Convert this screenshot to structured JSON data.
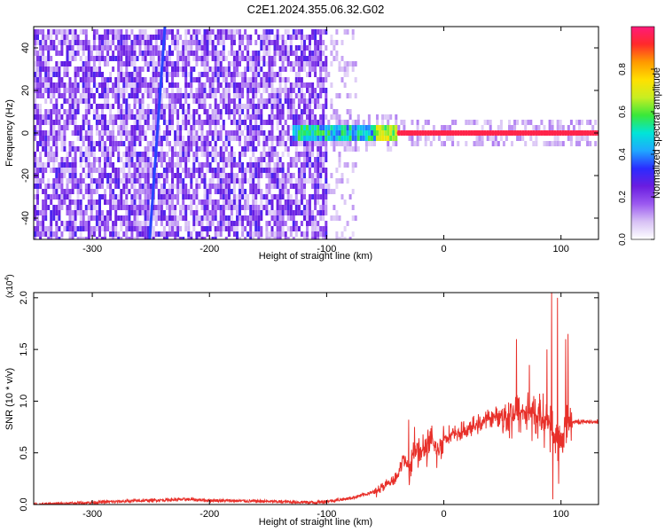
{
  "figure": {
    "title": "C2E1.2024.355.06.32.G02"
  },
  "colors": {
    "snr_line": "#e8302a",
    "background": "#ffffff",
    "colormap": [
      "#ffffff",
      "#d8c2f5",
      "#9b59f0",
      "#6a1de0",
      "#2b2bff",
      "#1fa8ff",
      "#00e5d8",
      "#39e83a",
      "#c8ee22",
      "#ffe000",
      "#ff9a00",
      "#ff2a2a",
      "#ff1a7a"
    ]
  },
  "chart_data": [
    {
      "type": "heatmap",
      "xlabel": "Height of straight line (km)",
      "ylabel": "Frequency (Hz)",
      "xlim": [
        -350,
        132
      ],
      "ylim": [
        -50,
        50
      ],
      "xticks": [
        -300,
        -200,
        -100,
        0,
        100
      ],
      "xtick_labels": [
        "-300",
        "-200",
        "-100",
        "0",
        "100"
      ],
      "yticks": [
        -40,
        -20,
        0,
        20,
        40
      ],
      "ytick_labels": [
        "-40",
        "-20",
        "0",
        "20",
        "40"
      ],
      "colorbar": {
        "label": "Normalized spectral amplitude",
        "range": [
          0.0,
          1.0
        ],
        "ticks": [
          0.0,
          0.2,
          0.4,
          0.6,
          0.8
        ],
        "tick_labels": [
          "0.0",
          "0.2",
          "0.4",
          "0.6",
          "0.8"
        ]
      },
      "features": {
        "noise_region_x": [
          -350,
          -100
        ],
        "noise_amplitude_range": [
          0.05,
          0.3
        ],
        "slanted_line": {
          "x_at_f_min": -251,
          "x_at_f_max": -238,
          "f_range": [
            -50,
            50
          ],
          "amplitude": 0.15
        },
        "signal_band": {
          "x_start": -130,
          "x_end": 132,
          "center_frequency": 0,
          "peak_amplitude": 0.95
        }
      }
    },
    {
      "type": "line",
      "xlabel": "Height of straight line (km)",
      "ylabel": "SNR (10 * v/v)",
      "y_multiplier_label": "(x10",
      "y_multiplier_exponent": "4",
      "xlim": [
        -350,
        132
      ],
      "ylim": [
        0,
        2.05
      ],
      "xticks": [
        -300,
        -200,
        -100,
        0,
        100
      ],
      "xtick_labels": [
        "-300",
        "-200",
        "-100",
        "0",
        "100"
      ],
      "yticks": [
        0.0,
        0.5,
        1.0,
        1.5,
        2.0
      ],
      "ytick_labels": [
        "0.0",
        "0.5",
        "1.0",
        "1.5",
        "2.0"
      ],
      "series": [
        {
          "x": [
            -350,
            -300,
            -250,
            -220,
            -200,
            -150,
            -110,
            -100,
            -80,
            -60,
            -50,
            -40,
            -35,
            -30,
            -25,
            -20,
            -15,
            -10,
            -5,
            0,
            10,
            20,
            30,
            40,
            50,
            60,
            70,
            80,
            90,
            95,
            100,
            105,
            110,
            120,
            132
          ],
          "y": [
            0.0,
            0.02,
            0.04,
            0.05,
            0.04,
            0.03,
            0.02,
            0.03,
            0.06,
            0.12,
            0.18,
            0.25,
            0.45,
            0.35,
            0.55,
            0.5,
            0.55,
            0.6,
            0.5,
            0.65,
            0.68,
            0.72,
            0.78,
            0.84,
            0.86,
            0.88,
            0.9,
            0.85,
            0.8,
            0.65,
            0.6,
            0.82,
            0.8,
            0.8,
            0.8
          ],
          "spikes": [
            {
              "x": -30,
              "y": 0.82
            },
            {
              "x": -25,
              "y": 0.75
            },
            {
              "x": 62,
              "y": 1.6
            },
            {
              "x": 73,
              "y": 1.35
            },
            {
              "x": 88,
              "y": 1.5
            },
            {
              "x": 92,
              "y": 2.05
            },
            {
              "x": 97,
              "y": 2.0
            },
            {
              "x": 104,
              "y": 1.6
            },
            {
              "x": 106,
              "y": 1.65
            },
            {
              "x": 93,
              "y": 0.05
            },
            {
              "x": 98,
              "y": 0.2
            }
          ]
        }
      ]
    }
  ]
}
